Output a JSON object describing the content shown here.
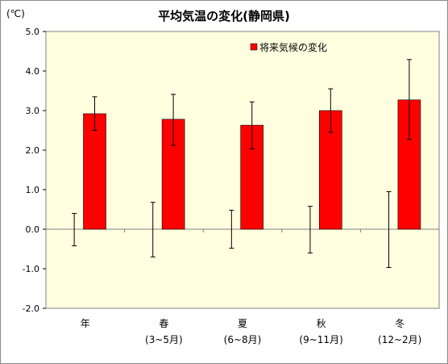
{
  "chart_data": {
    "type": "bar",
    "title": "平均気温の変化(静岡県)",
    "unit_label": "(℃)",
    "categories": [
      "年",
      "春",
      "夏",
      "秋",
      "冬"
    ],
    "category_sublabels": [
      "",
      "(3~5月)",
      "(6~8月)",
      "(9~11月)",
      "(12~2月)"
    ],
    "ylim": [
      -2.0,
      5.0
    ],
    "yticks": [
      "5.0",
      "4.0",
      "3.0",
      "2.0",
      "1.0",
      "0.0",
      "-1.0",
      "-2.0"
    ],
    "grid": false,
    "plot_background": "#ffffe0",
    "legend": {
      "position": "top-right"
    },
    "series": [
      {
        "name": "将来気候の変化",
        "color": "#ff0000",
        "values": [
          2.92,
          2.78,
          2.63,
          3.0,
          3.27
        ],
        "error_low": [
          2.5,
          2.12,
          2.03,
          2.45,
          2.27
        ],
        "error_high": [
          3.35,
          3.41,
          3.22,
          3.55,
          4.29
        ]
      }
    ],
    "baseline_range": {
      "low": [
        -0.42,
        -0.7,
        -0.48,
        -0.6,
        -0.97
      ],
      "high": [
        0.4,
        0.68,
        0.48,
        0.58,
        0.95
      ]
    }
  }
}
